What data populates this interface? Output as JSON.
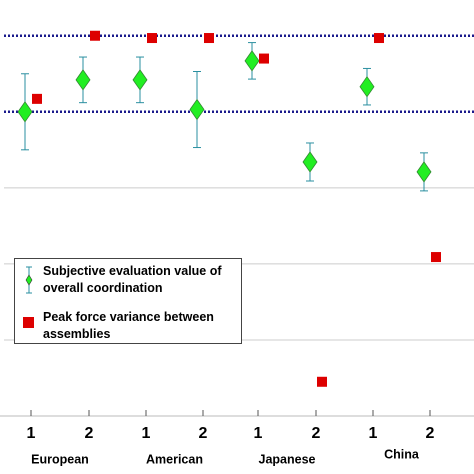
{
  "chart_data": {
    "type": "errorbar_scatter",
    "categories": [
      "1",
      "2",
      "1",
      "2",
      "1",
      "2",
      "1",
      "2"
    ],
    "groups": [
      "European",
      "American",
      "Japanese",
      "China"
    ],
    "series": [
      {
        "name": "Subjective evaluation value of overall coordination",
        "color": "#22ee22",
        "marker": "diamond",
        "values": [
          4.0,
          4.42,
          4.42,
          4.03,
          4.67,
          3.34,
          4.33,
          3.21
        ],
        "errors": [
          0.5,
          0.3,
          0.3,
          0.5,
          0.24,
          0.25,
          0.24,
          0.25
        ]
      },
      {
        "name": "Peak force variance between assemblies",
        "color": "#dd0000",
        "marker": "square",
        "values": [
          4.17,
          5.0,
          4.97,
          4.97,
          4.7,
          0.45,
          4.97,
          2.09
        ]
      }
    ],
    "ylim": [
      0,
      5.47
    ],
    "grid_lines": [
      1,
      2,
      3
    ],
    "reference_lines": [
      4,
      5
    ],
    "reference_color": "#1a1a8c",
    "errorbar_color": "#2a8fa0"
  }
}
